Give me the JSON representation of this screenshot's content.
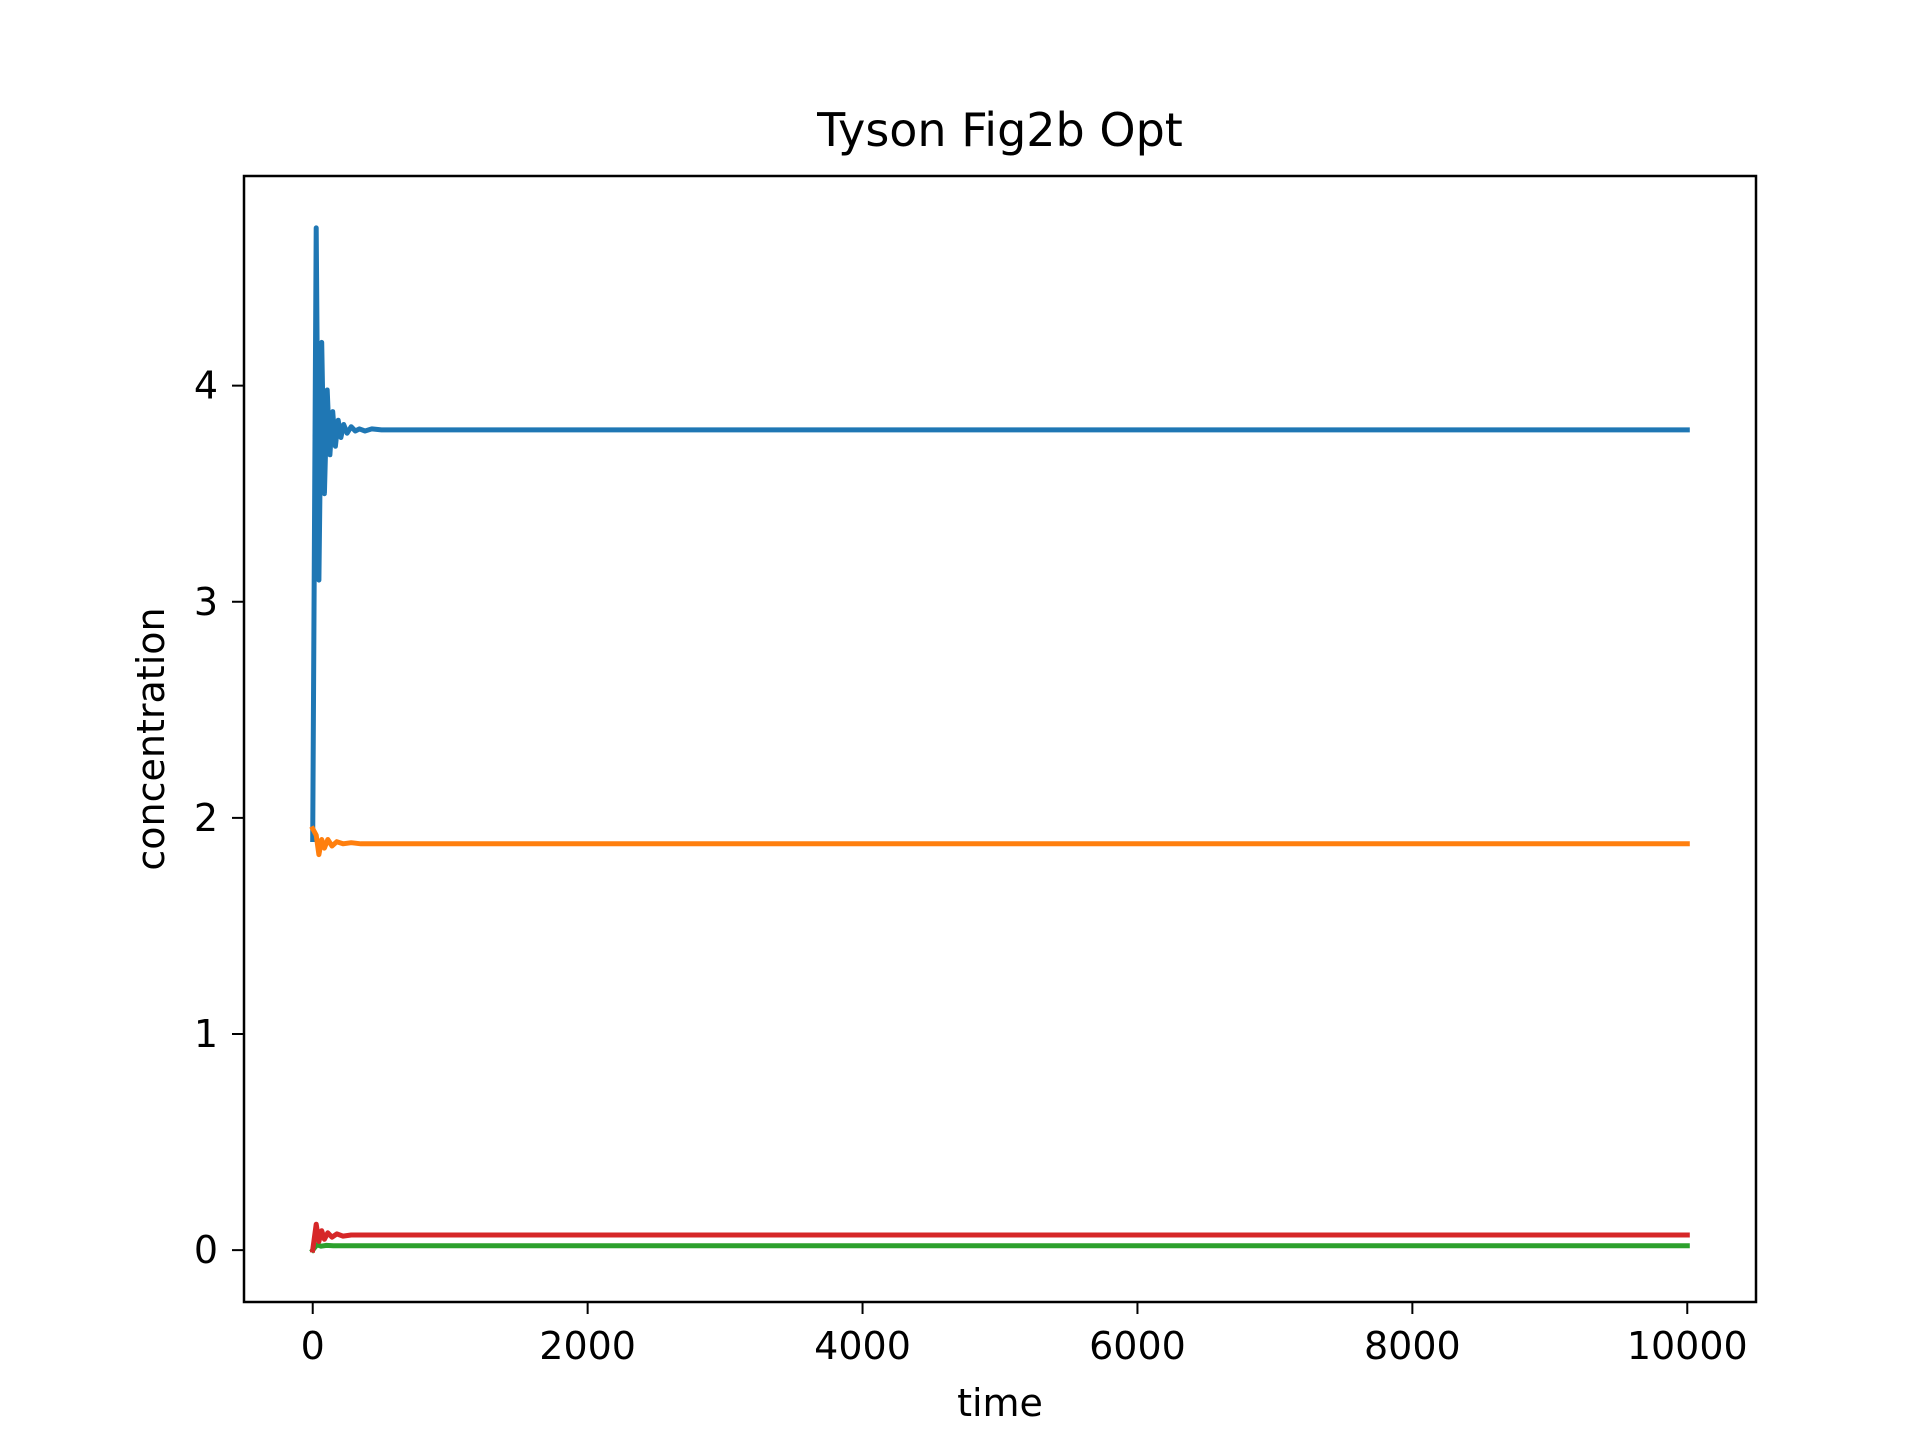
{
  "chart_data": {
    "type": "line",
    "title": "Tyson Fig2b Opt",
    "xlabel": "time",
    "ylabel": "concentration",
    "xlim": [
      -500,
      10500
    ],
    "ylim": [
      -0.24,
      4.97
    ],
    "xticks": [
      0,
      2000,
      4000,
      6000,
      8000,
      10000
    ],
    "xtick_labels": [
      "0",
      "2000",
      "4000",
      "6000",
      "8000",
      "10000"
    ],
    "yticks": [
      0,
      1,
      2,
      3,
      4
    ],
    "ytick_labels": [
      "0",
      "1",
      "2",
      "3",
      "4"
    ],
    "grid": false,
    "legend": "none",
    "series": [
      {
        "color": "#1f77b4",
        "x": [
          0,
          25,
          45,
          65,
          85,
          105,
          125,
          145,
          165,
          185,
          205,
          225,
          250,
          280,
          310,
          340,
          380,
          430,
          500,
          10000
        ],
        "y": [
          1.9,
          4.73,
          3.1,
          4.2,
          3.5,
          3.98,
          3.68,
          3.88,
          3.72,
          3.84,
          3.76,
          3.82,
          3.78,
          3.81,
          3.79,
          3.8,
          3.79,
          3.8,
          3.795,
          3.795
        ]
      },
      {
        "color": "#ff7f0e",
        "x": [
          0,
          25,
          45,
          65,
          85,
          110,
          140,
          175,
          220,
          280,
          350,
          10000
        ],
        "y": [
          1.95,
          1.92,
          1.83,
          1.9,
          1.86,
          1.9,
          1.87,
          1.89,
          1.88,
          1.885,
          1.88,
          1.88
        ]
      },
      {
        "color": "#2ca02c",
        "x": [
          0,
          30,
          60,
          100,
          150,
          10000
        ],
        "y": [
          0.0,
          0.025,
          0.018,
          0.022,
          0.02,
          0.02
        ]
      },
      {
        "color": "#d62728",
        "x": [
          0,
          25,
          45,
          65,
          85,
          110,
          140,
          175,
          220,
          280,
          10000
        ],
        "y": [
          0.0,
          0.12,
          0.04,
          0.09,
          0.05,
          0.08,
          0.06,
          0.075,
          0.065,
          0.07,
          0.07
        ]
      }
    ]
  }
}
